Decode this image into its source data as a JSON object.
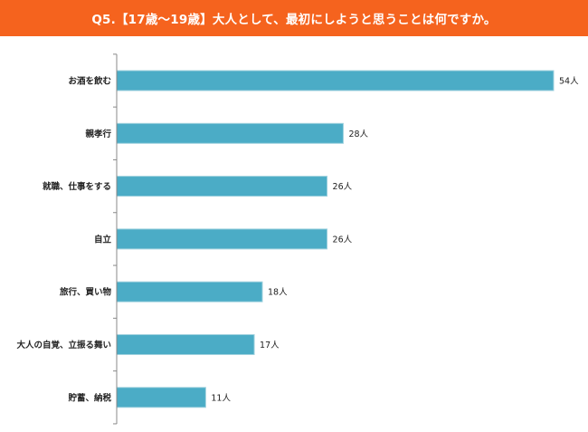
{
  "title": "Q5.【17歳～19歳】大人として、最初にしようと思うことは何ですか。",
  "colors": {
    "header_bg": "#f5631e",
    "header_text": "#ffffff",
    "bar": "#4bacc6",
    "axis": "#888888",
    "text": "#222222"
  },
  "chart_data": {
    "type": "bar",
    "orientation": "horizontal",
    "title": "Q5.【17歳～19歳】大人として、最初にしようと思うことは何ですか。",
    "categories": [
      "お酒を飲む",
      "親孝行",
      "就職、仕事をする",
      "自立",
      "旅行、買い物",
      "大人の自覚、立振る舞い",
      "貯蓄、納税"
    ],
    "values": [
      54,
      28,
      26,
      26,
      18,
      17,
      11
    ],
    "value_suffix": "人",
    "value_labels": [
      "54人",
      "28人",
      "26人",
      "26人",
      "18人",
      "17人",
      "11人"
    ],
    "xlim": [
      0,
      54
    ],
    "grid": false,
    "legend": "none"
  }
}
